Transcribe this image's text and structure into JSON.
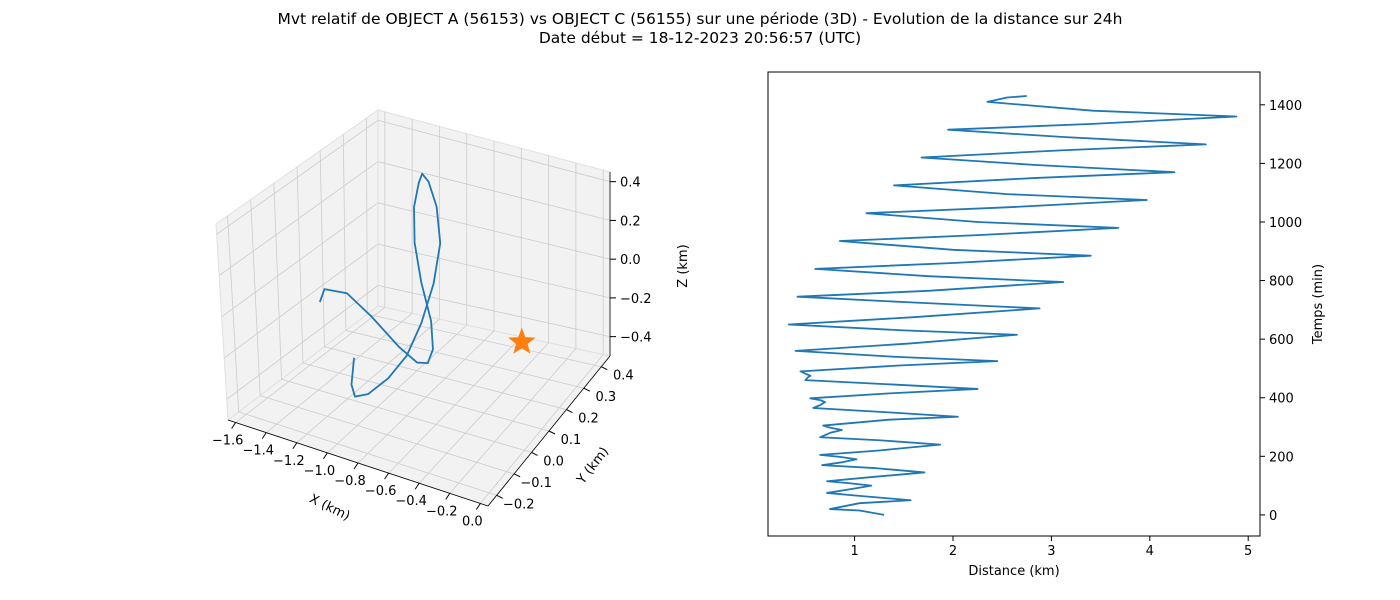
{
  "figure": {
    "title_line1": "Mvt relatif de OBJECT A (56153) vs OBJECT C (56155) sur une période (3D) - Evolution de la distance sur 24h",
    "title_line2": "Date début = 18-12-2023 20:56:57 (UTC)"
  },
  "colors": {
    "line": "#1f77b4",
    "marker": "#ff7f0e",
    "pane": "#f2f2f2",
    "grid": "#cccccc"
  },
  "chart_data": [
    {
      "type": "line",
      "projection": "3d",
      "xlabel": "X (km)",
      "ylabel": "Y (km)",
      "zlabel": "Z (km)",
      "x_ticks": [
        "−1.6",
        "−1.4",
        "−1.2",
        "−1.0",
        "−0.8",
        "−0.6",
        "−0.4",
        "−0.2",
        "0.0"
      ],
      "y_ticks": [
        "−0.2",
        "−0.1",
        "0.0",
        "0.1",
        "0.2",
        "0.3",
        "0.4"
      ],
      "z_ticks": [
        "−0.4",
        "−0.2",
        "0.0",
        "0.2",
        "0.4"
      ],
      "xlim": [
        -1.65,
        0.05
      ],
      "ylim": [
        -0.25,
        0.45
      ],
      "zlim": [
        -0.5,
        0.45
      ],
      "grid": true,
      "series": [
        {
          "x": [
            -1.22,
            -1.2,
            -1.15,
            -1.06,
            -0.96,
            -0.87,
            -0.82,
            -0.8,
            -0.82,
            -0.9,
            -1.0,
            -1.06,
            -1.07,
            -1.06,
            -1.0,
            -0.9,
            -0.78,
            -0.73,
            -0.74,
            -0.8,
            -0.92,
            -1.12,
            -1.3,
            -1.47,
            -1.52
          ],
          "y": [
            0.05,
            0.02,
            0.0,
            0.0,
            0.03,
            0.06,
            0.1,
            0.15,
            0.2,
            0.24,
            0.27,
            0.28,
            0.27,
            0.24,
            0.2,
            0.16,
            0.12,
            0.09,
            0.07,
            0.06,
            0.06,
            0.07,
            0.08,
            0.09,
            0.1
          ],
          "z": [
            -0.35,
            -0.45,
            -0.48,
            -0.45,
            -0.38,
            -0.28,
            -0.15,
            0.0,
            0.15,
            0.28,
            0.36,
            0.38,
            0.34,
            0.25,
            0.12,
            -0.02,
            -0.15,
            -0.25,
            -0.3,
            -0.3,
            -0.25,
            -0.15,
            -0.08,
            -0.1,
            -0.18
          ]
        }
      ],
      "marker": {
        "shape": "star",
        "x": 0.0,
        "y": 0.0,
        "z": 0.0
      }
    },
    {
      "type": "line",
      "xlabel": "Distance (km)",
      "ylabel": "Temps (min)",
      "xlim": [
        0.12,
        5.12
      ],
      "ylim": [
        -72,
        1512
      ],
      "x_ticks": [
        1,
        2,
        3,
        4,
        5
      ],
      "y_ticks": [
        0,
        200,
        400,
        600,
        800,
        1000,
        1200,
        1400
      ],
      "y_axis_side": "right",
      "grid": false,
      "series": [
        {
          "x": [
            1.3,
            1.05,
            0.75,
            1.05,
            1.57,
            1.05,
            0.72,
            1.0,
            1.17,
            0.95,
            0.72,
            1.2,
            1.71,
            1.2,
            0.67,
            0.88,
            1.02,
            0.85,
            0.65,
            1.25,
            1.87,
            1.25,
            0.65,
            0.75,
            0.87,
            0.75,
            0.68,
            1.35,
            2.05,
            1.35,
            0.58,
            0.65,
            0.7,
            0.65,
            0.55,
            1.35,
            2.25,
            1.4,
            0.5,
            0.52,
            0.55,
            0.5,
            0.45,
            1.45,
            2.45,
            1.4,
            0.4,
            1.55,
            2.65,
            1.5,
            0.33,
            1.6,
            2.88,
            1.6,
            0.42,
            1.75,
            3.12,
            1.75,
            0.6,
            2.0,
            3.4,
            2.0,
            0.85,
            2.25,
            3.68,
            2.25,
            1.12,
            2.55,
            3.97,
            2.55,
            1.4,
            2.82,
            4.25,
            2.82,
            1.68,
            3.12,
            4.57,
            3.12,
            1.95,
            3.42,
            4.88,
            3.42,
            2.35,
            2.55,
            2.75
          ],
          "y": [
            0,
            15,
            20,
            40,
            50,
            65,
            75,
            90,
            100,
            108,
            115,
            130,
            145,
            160,
            170,
            180,
            190,
            198,
            205,
            220,
            240,
            255,
            265,
            280,
            290,
            298,
            305,
            325,
            335,
            350,
            365,
            375,
            385,
            392,
            398,
            415,
            430,
            445,
            460,
            468,
            475,
            482,
            490,
            510,
            525,
            540,
            560,
            585,
            615,
            630,
            650,
            675,
            705,
            725,
            745,
            765,
            795,
            815,
            840,
            860,
            885,
            905,
            935,
            955,
            980,
            1000,
            1030,
            1050,
            1075,
            1095,
            1125,
            1150,
            1170,
            1195,
            1220,
            1245,
            1265,
            1290,
            1315,
            1335,
            1360,
            1380,
            1410,
            1425,
            1430
          ]
        }
      ]
    }
  ]
}
